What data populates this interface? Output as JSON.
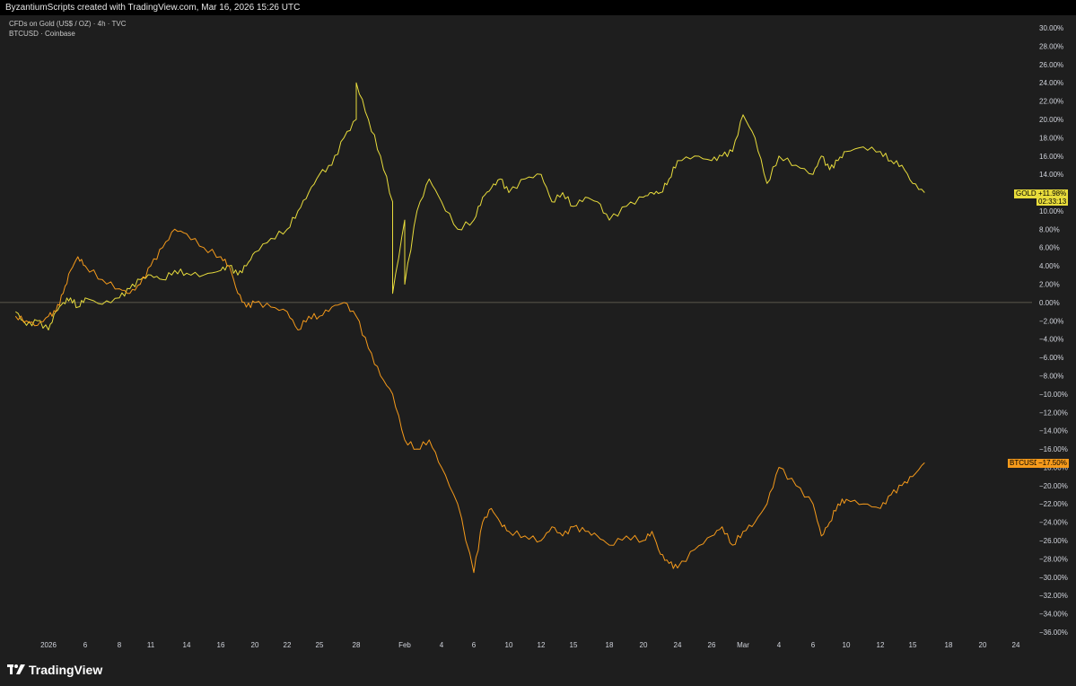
{
  "header": {
    "attribution": "ByzantiumScripts created with TradingView.com, Mar 16, 2026 15:26 UTC"
  },
  "legend": {
    "line1": "CFDs on Gold (US$ / OZ) · 4h · TVC",
    "line2": "BTCUSD · Coinbase"
  },
  "brand": {
    "name": "TradingView"
  },
  "colors": {
    "background": "#1e1e1e",
    "gold": "#e8dc3c",
    "btc": "#f59a1b",
    "text": "#d1d4dc"
  },
  "labels": {
    "gold_symbol": "GOLD",
    "gold_value": "+11.98%",
    "gold_timer": "02:33:13",
    "btc_symbol": "BTCUSD",
    "btc_value": "−17.50%"
  },
  "chart_data": {
    "type": "line",
    "y_unit": "%",
    "ylim": [
      -36,
      30
    ],
    "y_ticks": [
      "30.00%",
      "28.00%",
      "26.00%",
      "24.00%",
      "22.00%",
      "20.00%",
      "18.00%",
      "16.00%",
      "14.00%",
      "12.00%",
      "10.00%",
      "8.00%",
      "6.00%",
      "4.00%",
      "2.00%",
      "0.00%",
      "−2.00%",
      "−4.00%",
      "−6.00%",
      "−8.00%",
      "−10.00%",
      "−12.00%",
      "−14.00%",
      "−16.00%",
      "−18.00%",
      "−20.00%",
      "−22.00%",
      "−24.00%",
      "−26.00%",
      "−28.00%",
      "−30.00%",
      "−32.00%",
      "−34.00%",
      "−36.00%"
    ],
    "y_tick_values": [
      30,
      28,
      26,
      24,
      22,
      20,
      18,
      16,
      14,
      12,
      10,
      8,
      6,
      4,
      2,
      0,
      -2,
      -4,
      -6,
      -8,
      -10,
      -12,
      -14,
      -16,
      -18,
      -20,
      -22,
      -24,
      -26,
      -28,
      -30,
      -32,
      -34,
      -36
    ],
    "x_ticks": [
      "2026",
      "6",
      "8",
      "11",
      "14",
      "16",
      "20",
      "22",
      "25",
      "28",
      "Feb",
      "4",
      "6",
      "10",
      "12",
      "15",
      "18",
      "20",
      "24",
      "26",
      "Mar",
      "4",
      "6",
      "10",
      "12",
      "15",
      "18",
      "20",
      "24"
    ],
    "x_tick_dates": [
      "2026-01-01",
      "2026-01-06",
      "2026-01-08",
      "2026-01-11",
      "2026-01-14",
      "2026-01-16",
      "2026-01-20",
      "2026-01-22",
      "2026-01-25",
      "2026-01-28",
      "2026-02-01",
      "2026-02-04",
      "2026-02-06",
      "2026-02-10",
      "2026-02-12",
      "2026-02-15",
      "2026-02-18",
      "2026-02-20",
      "2026-02-24",
      "2026-02-26",
      "2026-03-01",
      "2026-03-04",
      "2026-03-06",
      "2026-03-10",
      "2026-03-12",
      "2026-03-15",
      "2026-03-18",
      "2026-03-20",
      "2026-03-24"
    ],
    "series": [
      {
        "name": "GOLD",
        "color": "#e8dc3c",
        "dates": [
          "2025-12-29",
          "2025-12-30",
          "2025-12-31",
          "2026-01-01",
          "2026-01-02",
          "2026-01-03",
          "2026-01-04",
          "2026-01-05",
          "2026-01-06",
          "2026-01-07",
          "2026-01-08",
          "2026-01-09",
          "2026-01-10",
          "2026-01-11",
          "2026-01-12",
          "2026-01-13",
          "2026-01-14",
          "2026-01-15",
          "2026-01-16",
          "2026-01-17",
          "2026-01-18",
          "2026-01-19",
          "2026-01-20",
          "2026-01-21",
          "2026-01-22",
          "2026-01-23",
          "2026-01-24",
          "2026-01-25",
          "2026-01-26",
          "2026-01-27",
          "2026-01-28",
          "2026-01-28",
          "2026-01-29",
          "2026-01-30",
          "2026-01-31",
          "2026-01-31",
          "2026-02-01",
          "2026-02-01",
          "2026-02-02",
          "2026-02-03",
          "2026-02-04",
          "2026-02-05",
          "2026-02-06",
          "2026-02-07",
          "2026-02-08",
          "2026-02-09",
          "2026-02-10",
          "2026-02-11",
          "2026-02-12",
          "2026-02-13",
          "2026-02-14",
          "2026-02-15",
          "2026-02-16",
          "2026-02-17",
          "2026-02-18",
          "2026-02-19",
          "2026-02-20",
          "2026-02-21",
          "2026-02-22",
          "2026-02-23",
          "2026-02-24",
          "2026-02-25",
          "2026-02-26",
          "2026-02-27",
          "2026-02-28",
          "2026-03-01",
          "2026-03-02",
          "2026-03-03",
          "2026-03-04",
          "2026-03-05",
          "2026-03-06",
          "2026-03-07",
          "2026-03-08",
          "2026-03-09",
          "2026-03-10",
          "2026-03-11",
          "2026-03-12",
          "2026-03-13",
          "2026-03-14",
          "2026-03-15",
          "2026-03-16"
        ],
        "values": [
          -1.0,
          -2.5,
          -2.0,
          -3.0,
          -1.0,
          0.0,
          0.5,
          -0.5,
          0.5,
          -0.2,
          0.5,
          1.5,
          2.5,
          3.0,
          2.5,
          3.5,
          3.2,
          3.0,
          3.5,
          4.0,
          3.0,
          4.0,
          5.5,
          7.0,
          8.0,
          10.0,
          12.0,
          14.0,
          15.0,
          18.0,
          20.0,
          24.0,
          20.0,
          16.0,
          11.0,
          1.0,
          9.0,
          2.0,
          10.0,
          13.5,
          11.0,
          8.0,
          9.0,
          11.5,
          12.5,
          13.5,
          12.0,
          13.5,
          14.0,
          11.0,
          12.0,
          10.5,
          11.5,
          11.0,
          9.0,
          10.5,
          11.5,
          12.0,
          12.0,
          13.5,
          15.5,
          16.0,
          15.5,
          16.0,
          16.5,
          20.5,
          18.0,
          13.0,
          16.0,
          15.0,
          14.0,
          16.0,
          14.5,
          15.5,
          16.5,
          17.0,
          16.5,
          15.5,
          15.0,
          13.0,
          12.0
        ]
      },
      {
        "name": "BTCUSD",
        "color": "#f59a1b",
        "dates": [
          "2025-12-29",
          "2025-12-30",
          "2025-12-31",
          "2026-01-01",
          "2026-01-02",
          "2026-01-03",
          "2026-01-04",
          "2026-01-05",
          "2026-01-06",
          "2026-01-07",
          "2026-01-08",
          "2026-01-09",
          "2026-01-10",
          "2026-01-11",
          "2026-01-12",
          "2026-01-13",
          "2026-01-14",
          "2026-01-15",
          "2026-01-16",
          "2026-01-17",
          "2026-01-18",
          "2026-01-19",
          "2026-01-20",
          "2026-01-21",
          "2026-01-22",
          "2026-01-23",
          "2026-01-24",
          "2026-01-25",
          "2026-01-26",
          "2026-01-27",
          "2026-01-28",
          "2026-01-29",
          "2026-01-30",
          "2026-01-31",
          "2026-02-01",
          "2026-02-02",
          "2026-02-03",
          "2026-02-04",
          "2026-02-05",
          "2026-02-06",
          "2026-02-07",
          "2026-02-08",
          "2026-02-09",
          "2026-02-10",
          "2026-02-11",
          "2026-02-12",
          "2026-02-13",
          "2026-02-14",
          "2026-02-15",
          "2026-02-16",
          "2026-02-17",
          "2026-02-18",
          "2026-02-19",
          "2026-02-20",
          "2026-02-21",
          "2026-02-22",
          "2026-02-23",
          "2026-02-24",
          "2026-02-25",
          "2026-02-26",
          "2026-02-27",
          "2026-02-28",
          "2026-03-01",
          "2026-03-02",
          "2026-03-03",
          "2026-03-04",
          "2026-03-05",
          "2026-03-06",
          "2026-03-07",
          "2026-03-08",
          "2026-03-09",
          "2026-03-10",
          "2026-03-11",
          "2026-03-12",
          "2026-03-13",
          "2026-03-14",
          "2026-03-15",
          "2026-03-16"
        ],
        "values": [
          -1.5,
          -2.0,
          -2.5,
          -1.5,
          -1.0,
          1.0,
          3.5,
          5.0,
          4.0,
          2.5,
          1.5,
          1.0,
          2.0,
          4.0,
          6.0,
          8.0,
          7.5,
          6.0,
          5.0,
          4.0,
          1.0,
          -0.5,
          0.0,
          -0.5,
          -1.0,
          -3.0,
          -1.5,
          -1.5,
          -0.5,
          0.0,
          -1.5,
          -5.0,
          -8.0,
          -10.0,
          -15.0,
          -16.0,
          -15.0,
          -18.0,
          -22.0,
          -29.5,
          -24.0,
          -22.5,
          -24.0,
          -25.0,
          -25.5,
          -26.0,
          -24.5,
          -25.5,
          -24.5,
          -25.0,
          -25.5,
          -26.5,
          -25.5,
          -26.0,
          -25.0,
          -27.5,
          -28.5,
          -29.0,
          -27.0,
          -25.5,
          -24.5,
          -26.5,
          -25.0,
          -24.0,
          -22.0,
          -18.0,
          -20.0,
          -22.0,
          -25.5,
          -24.0,
          -22.0,
          -21.5,
          -22.0,
          -22.5,
          -21.0,
          -20.0,
          -19.0,
          -17.5
        ]
      }
    ]
  }
}
